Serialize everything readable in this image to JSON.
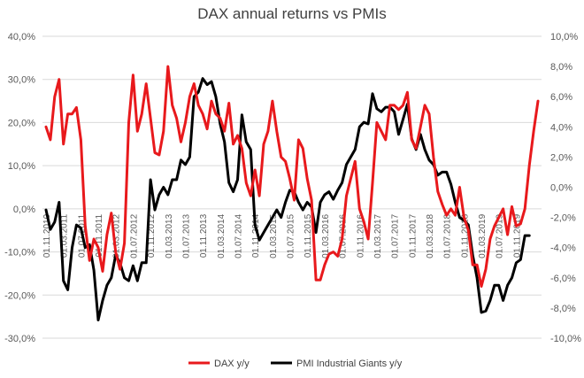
{
  "chart_data": {
    "type": "line",
    "title": "DAX annual returns vs PMIs",
    "colors": {
      "dax": "#e8191c",
      "pmi": "#000000",
      "grid": "#d9d9d9"
    },
    "left_axis": {
      "ylim": [
        -30,
        40
      ],
      "ticks": [
        40,
        30,
        20,
        10,
        0,
        -10,
        -20,
        -30
      ],
      "tick_labels": [
        "40,0%",
        "30,0%",
        "20,0%",
        "10,0%",
        "0,0%",
        "-10,0%",
        "-20,0%",
        "-30,0%"
      ]
    },
    "right_axis": {
      "ylim": [
        -10,
        10
      ],
      "ticks": [
        10,
        8,
        6,
        4,
        2,
        0,
        -2,
        -4,
        -6,
        -8,
        -10
      ],
      "tick_labels": [
        "10,0%",
        "8,0%",
        "6,0%",
        "4,0%",
        "2,0%",
        "0,0%",
        "-2,0%",
        "-4,0%",
        "-6,0%",
        "-8,0%",
        "-10,0%"
      ]
    },
    "x_tick_labels": [
      "01.11.2010",
      "01.03.2011",
      "01.07.2011",
      "01.11.2011",
      "01.03.2012",
      "01.07.2012",
      "01.11.2012",
      "01.03.2013",
      "01.07.2013",
      "01.11.2013",
      "01.03.2014",
      "01.07.2014",
      "01.11.2014",
      "01.03.2015",
      "01.07.2015",
      "01.11.2015",
      "01.03.2016",
      "01.07.2016",
      "01.11.2016",
      "01.03.2017",
      "01.07.2017",
      "01.11.2017",
      "01.03.2018",
      "01.07.2018",
      "01.11.2018",
      "01.03.2019",
      "01.07.2019",
      "01.11.2019"
    ],
    "series": [
      {
        "name": "DAX y/y",
        "axis": "left",
        "values": [
          19,
          16,
          26,
          30,
          15,
          22,
          22,
          23.5,
          16,
          -4,
          -12,
          -7,
          -9,
          -14.5,
          -6,
          -1,
          -10,
          -14,
          -8,
          20,
          31,
          18,
          22,
          29,
          21,
          13,
          12.5,
          18,
          33,
          24,
          21,
          15.5,
          20,
          26,
          29,
          24,
          22,
          18.5,
          25,
          22,
          21,
          18,
          24.5,
          15,
          17,
          14,
          6,
          3,
          9,
          3,
          15,
          18,
          25,
          18,
          12,
          11,
          7,
          2,
          16,
          14,
          7,
          2,
          -16.5,
          -16.5,
          -13,
          -10.5,
          -10,
          -11,
          -7,
          3,
          7,
          11,
          0,
          -3,
          -7,
          6,
          20,
          18,
          16,
          24,
          24,
          23,
          24,
          27,
          16,
          14,
          19,
          24,
          22,
          12,
          4,
          1,
          -1.5,
          0,
          -1.5,
          5,
          -2,
          -5,
          -13,
          -13,
          -18,
          -14,
          -7,
          -4,
          -2,
          0,
          -6,
          0.5,
          -4,
          -3.5,
          0,
          10,
          18,
          25
        ]
      },
      {
        "name": "PMI Industrial Giants y/y",
        "axis": "right",
        "values": [
          -1.5,
          -2.8,
          -2.3,
          -1,
          -6.2,
          -6.8,
          -4,
          -2.5,
          -2.7,
          -4,
          -3.8,
          -5.5,
          -8.8,
          -7.5,
          -6.5,
          -6,
          -4.5,
          -5,
          -6,
          -6.2,
          -5.2,
          -6.2,
          -5,
          -5,
          0.5,
          -1.5,
          -0.5,
          0,
          -0.5,
          0.5,
          0.5,
          1.8,
          1.5,
          2,
          6,
          6.3,
          7.2,
          6.8,
          7,
          6,
          4.2,
          3,
          0.3,
          -0.3,
          0.5,
          4.8,
          3,
          2.5,
          -2.5,
          -3.5,
          -3,
          -2.5,
          -2,
          -1.5,
          -2,
          -1,
          -0.2,
          -0.3,
          -1,
          -1.5,
          -1,
          -1.3,
          -3,
          -1,
          -0.5,
          -0.3,
          -0.8,
          -0.2,
          0.3,
          1.5,
          2,
          2.5,
          4,
          4.3,
          4.2,
          6.2,
          5.2,
          5,
          5.3,
          5.3,
          5,
          3.5,
          4.5,
          5.5,
          3.2,
          2.5,
          3.5,
          2.5,
          1.8,
          1.5,
          0.8,
          1,
          1,
          0.2,
          -1,
          -2,
          -2.2,
          -2.5,
          -4.5,
          -6,
          -8.3,
          -8.2,
          -7.5,
          -6.5,
          -6.5,
          -7.5,
          -6.5,
          -6,
          -5,
          -4.8,
          -3.2,
          -3.2
        ]
      }
    ],
    "legend": {
      "position": "bottom",
      "entries": [
        "DAX y/y",
        "PMI Industrial Giants y/y"
      ]
    },
    "grid": true
  }
}
